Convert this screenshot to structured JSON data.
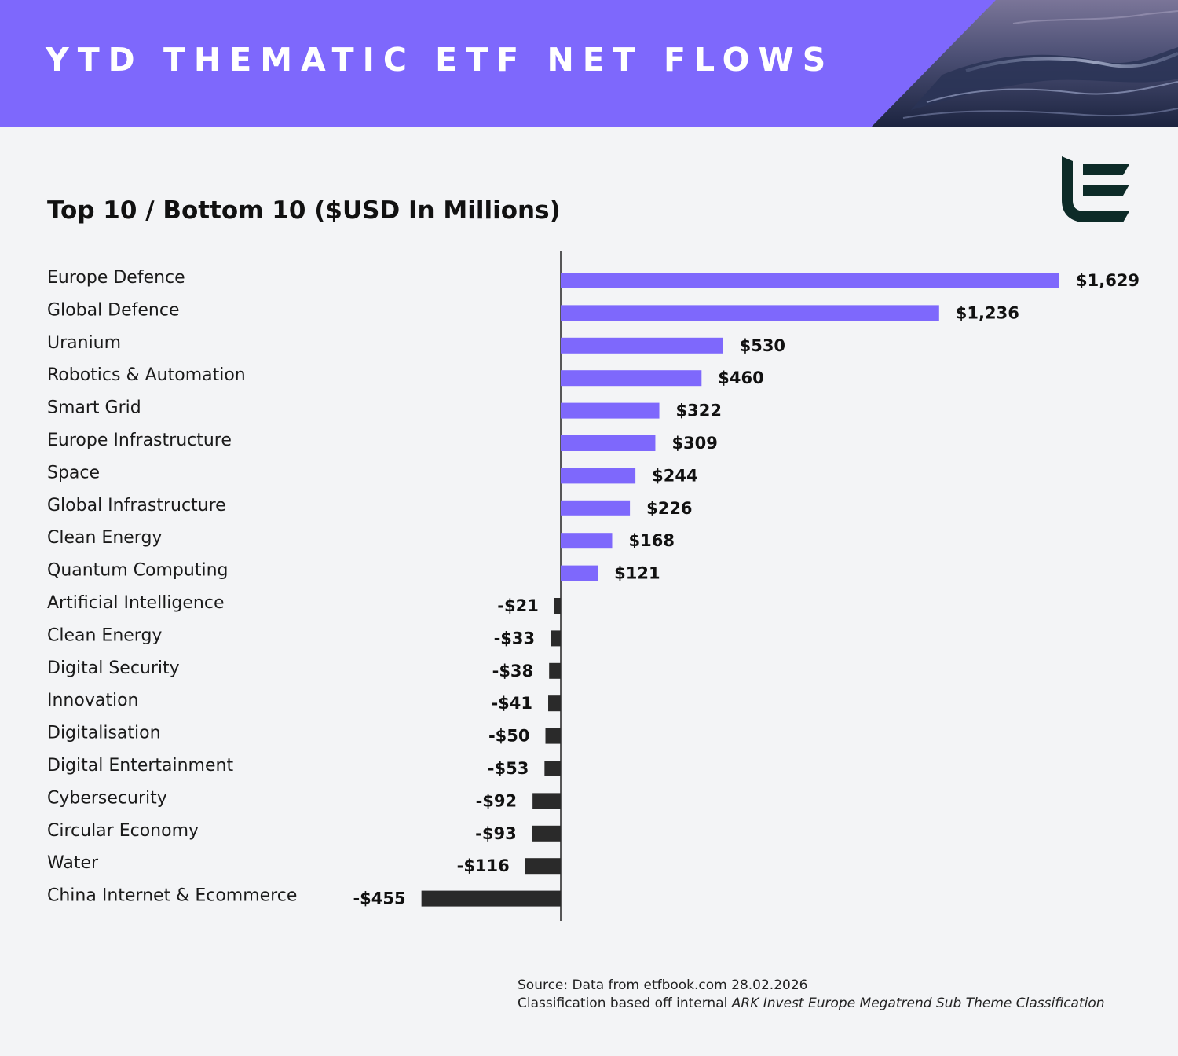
{
  "header": {
    "title": "YTD THEMATIC ETF NET FLOWS"
  },
  "colors": {
    "header_bg": "#7e68fc",
    "positive_bar": "#7e68fc",
    "negative_bar": "#2a2a2a",
    "logo": "#0d2b28",
    "background": "#f3f4f6"
  },
  "logo": {
    "icon": "e-letter-logo-icon"
  },
  "chart_data": {
    "type": "bar",
    "orientation": "horizontal",
    "title": "Top 10 / Bottom 10 ($USD In Millions)",
    "unit": "USD millions",
    "xlim": [
      -455,
      1629
    ],
    "categories": [
      "Europe Defence",
      "Global Defence",
      "Uranium",
      "Robotics & Automation",
      "Smart Grid",
      "Europe Infrastructure",
      "Space",
      "Global Infrastructure",
      "Clean Energy",
      "Quantum Computing",
      "Artificial Intelligence",
      "Clean Energy",
      "Digital Security",
      "Innovation",
      "Digitalisation",
      "Digital Entertainment",
      "Cybersecurity",
      "Circular Economy",
      "Water",
      "China Internet & Ecommerce"
    ],
    "values": [
      1629,
      1236,
      530,
      460,
      322,
      309,
      244,
      226,
      168,
      121,
      -21,
      -33,
      -38,
      -41,
      -50,
      -53,
      -92,
      -93,
      -116,
      -455
    ],
    "value_labels": [
      "$1,629",
      "$1,236",
      "$530",
      "$460",
      "$322",
      "$309",
      "$244",
      "$226",
      "$168",
      "$121",
      "-$21",
      "-$33",
      "-$38",
      "-$41",
      "-$50",
      "-$53",
      "-$92",
      "-$93",
      "-$116",
      "-$455"
    ]
  },
  "source": {
    "line1": "Source: Data from etfbook.com 28.02.2026",
    "line2_prefix": "Classification based off internal ",
    "line2_italic": "ARK Invest Europe Megatrend Sub Theme Classification"
  }
}
